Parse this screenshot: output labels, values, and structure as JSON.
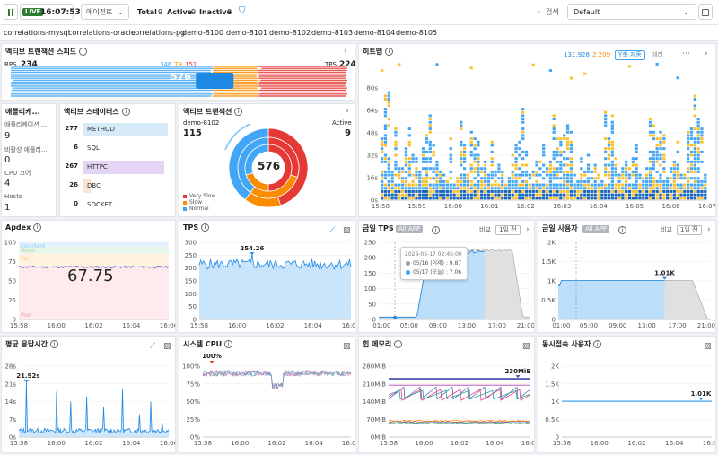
{
  "header": {
    "pause_icon": "pause-icon",
    "live_label": "LIVE",
    "clock": "16:07:53",
    "agent_select": "에이전트",
    "total_label": "Total",
    "total_value": "9",
    "active_label": "Active",
    "active_value": "9",
    "inactive_label": "Inactive",
    "inactive_value": "0",
    "search_label": "검색",
    "layout_select": "Default"
  },
  "apps": [
    "correlations-mysql",
    "correlations-oracle",
    "correlations-pg",
    "demo-8100",
    "demo-8101",
    "demo-8102",
    "demo-8103",
    "demo-8104",
    "demo-8105"
  ],
  "speed": {
    "title": "액티브 트랜잭션 스피드",
    "rps_label": "RPS",
    "rps_value": "234",
    "tps_label": "TPS",
    "tps_value": "224",
    "counts": [
      "346",
      "79",
      "151"
    ],
    "total": "576"
  },
  "apps_panel": {
    "title": "애플리케...",
    "items": [
      {
        "label": "애플리케이션 ...",
        "value": "9"
      },
      {
        "label": "비활성 애플리...",
        "value": "0"
      },
      {
        "label": "CPU 코어",
        "value": "4"
      },
      {
        "label": "Hosts",
        "value": "1"
      }
    ]
  },
  "status": {
    "title": "액티브 스테이터스",
    "rows": [
      {
        "count": "277",
        "name": "METHOD",
        "frac": 1.0,
        "color": "#d6eaf8"
      },
      {
        "count": "6",
        "name": "SQL",
        "frac": 0.0,
        "color": "#d6eaf8"
      },
      {
        "count": "267",
        "name": "HTTPC",
        "frac": 0.96,
        "color": "#e3d5f3"
      },
      {
        "count": "26",
        "name": "DBC",
        "frac": 0.09,
        "color": "#fbe3d2"
      },
      {
        "count": "0",
        "name": "SOCKET",
        "frac": 0.0,
        "color": "#d6eaf8"
      }
    ]
  },
  "active_tx": {
    "title": "액티브 트랜잭션",
    "agent": "demo-8102",
    "agent_value": "115",
    "active_label": "Active",
    "active_value": "9",
    "total": "576",
    "legend": [
      {
        "label": "Very Slow",
        "color": "#e53935"
      },
      {
        "label": "Slow",
        "color": "#fb8c00"
      },
      {
        "label": "Normal",
        "color": "#42a5f5"
      }
    ]
  },
  "heatmap": {
    "title": "히트맵",
    "count_blue": "131,928",
    "count_orange": "2,209",
    "yauto": "Y축 자동",
    "error_label": "에러",
    "yticks": [
      "80s",
      "64s",
      "48s",
      "32s",
      "16s",
      "0s"
    ],
    "xticks": [
      "15:58",
      "15:59",
      "16:00",
      "16:01",
      "16:02",
      "16:03",
      "16:04",
      "16:05",
      "16:06",
      "16:07"
    ]
  },
  "apdex": {
    "title": "Apdex",
    "value": "67.75",
    "bands": [
      "Excellent",
      "Good",
      "Fair",
      "Poor"
    ],
    "yticks": [
      "100",
      "75",
      "50",
      "25",
      "0"
    ],
    "xticks": [
      "15:58",
      "16:00",
      "16:02",
      "16:04",
      "16:06"
    ]
  },
  "tps": {
    "title": "TPS",
    "peak": "254.26",
    "yticks": [
      "300",
      "250",
      "200",
      "150",
      "100",
      "50",
      "0"
    ],
    "xticks": [
      "15:58",
      "16:00",
      "16:02",
      "16:04",
      "16:06"
    ]
  },
  "today_tps": {
    "title": "금일 TPS",
    "chip": "All APP",
    "compare_label": "비교",
    "compare_value": "1일 전",
    "tooltip_time": "2026-05-17 02:45:00",
    "tooltip_rows": [
      {
        "label": "05/16 (어제) : 9.87",
        "color": "#9e9e9e"
      },
      {
        "label": "05/17 (오늘) : 7.06",
        "color": "#42a5f5"
      }
    ],
    "yticks": [
      "250",
      "200",
      "150",
      "100",
      "50",
      "0"
    ],
    "xticks": [
      "01:00",
      "05:00",
      "09:00",
      "13:00",
      "17:00",
      "21:00"
    ]
  },
  "today_users": {
    "title": "금일 사용자",
    "chip": "All APP",
    "compare_label": "비교",
    "compare_value": "1일 전",
    "peak": "1.01K",
    "yticks": [
      "2K",
      "1.5K",
      "1K",
      "0.5K",
      "0"
    ],
    "xticks": [
      "01:00",
      "05:00",
      "09:00",
      "13:00",
      "17:00",
      "21:00"
    ]
  },
  "resp": {
    "title": "평균 응답시간",
    "peak": "21.92s",
    "yticks": [
      "28s",
      "21s",
      "14s",
      "7s",
      "0s"
    ],
    "xticks": [
      "15:58",
      "16:00",
      "16:02",
      "16:04",
      "16:06"
    ]
  },
  "cpu": {
    "title": "시스템 CPU",
    "peak": "100%",
    "yticks": [
      "100%",
      "75%",
      "50%",
      "25%",
      "0%"
    ],
    "xticks": [
      "15:58",
      "16:00",
      "16:02",
      "16:04",
      "16:06"
    ]
  },
  "heap": {
    "title": "힙 메모리",
    "peak": "230MiB",
    "yticks": [
      "280MiB",
      "210MiB",
      "140MiB",
      "70MiB",
      "0MiB"
    ],
    "xticks": [
      "15:58",
      "16:00",
      "16:02",
      "16:04",
      "16:06"
    ]
  },
  "concurrent": {
    "title": "동시접속 사용자",
    "peak": "1.01K",
    "yticks": [
      "2K",
      "1.5K",
      "1K",
      "0.5K",
      "0"
    ],
    "xticks": [
      "15:58",
      "16:00",
      "16:02",
      "16:04",
      "16:06"
    ]
  }
}
